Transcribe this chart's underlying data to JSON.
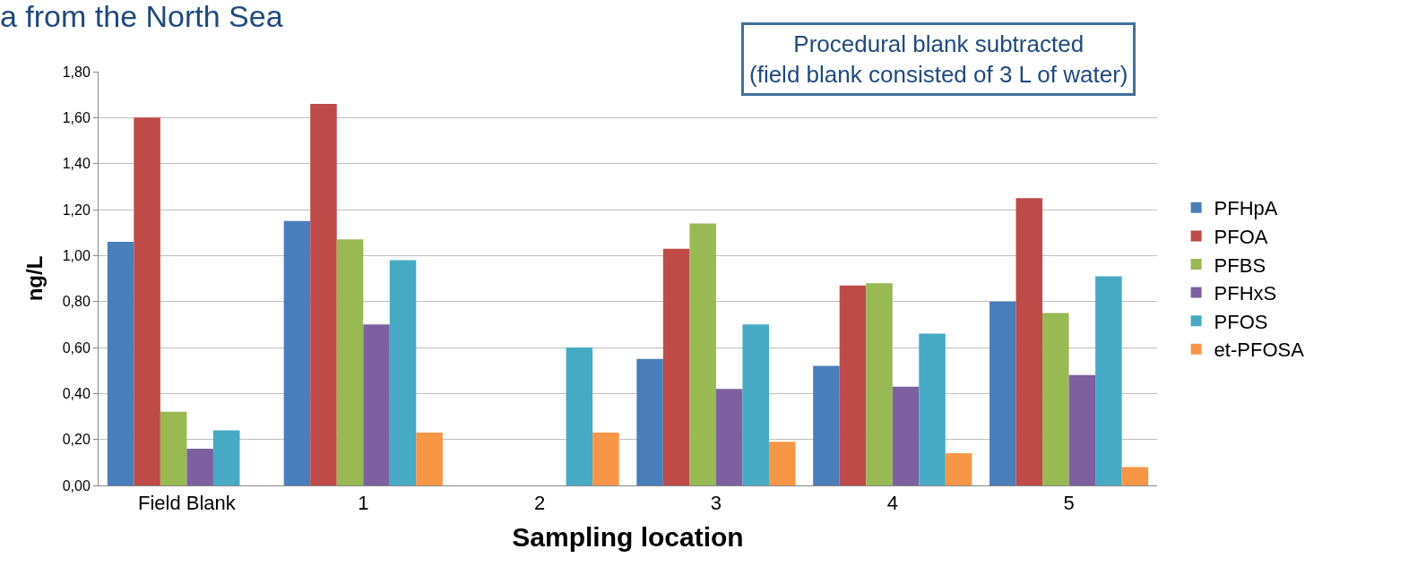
{
  "chart_data": {
    "type": "bar",
    "title": "a from the North Sea",
    "xlabel": "Sampling location",
    "ylabel": "ng/L",
    "annotations": [
      "Procedural blank subtracted\n(field blank consisted of 3 L of water)"
    ],
    "categories": [
      "Field Blank",
      "1",
      "2",
      "3",
      "4",
      "5"
    ],
    "series": [
      {
        "name": "PFHpA",
        "color": "#4a7ebb",
        "values": [
          1.06,
          1.15,
          null,
          0.55,
          0.52,
          0.8
        ]
      },
      {
        "name": "PFOA",
        "color": "#be4b48",
        "values": [
          1.6,
          1.66,
          null,
          1.03,
          0.87,
          1.25
        ]
      },
      {
        "name": "PFBS",
        "color": "#98b954",
        "values": [
          0.32,
          1.07,
          null,
          1.14,
          0.88,
          0.75
        ]
      },
      {
        "name": "PFHxS",
        "color": "#7d60a0",
        "values": [
          0.16,
          0.7,
          null,
          0.42,
          0.43,
          0.48
        ]
      },
      {
        "name": "PFOS",
        "color": "#46aac5",
        "values": [
          0.24,
          0.98,
          0.6,
          0.7,
          0.66,
          0.91
        ]
      },
      {
        "name": "et-PFOSA",
        "color": "#f79646",
        "values": [
          null,
          0.23,
          0.23,
          0.19,
          0.14,
          0.08
        ]
      }
    ],
    "ylim": [
      0,
      1.8
    ],
    "yticks": [
      {
        "value": 0,
        "label": "0,00"
      },
      {
        "value": 0.2,
        "label": "0,20"
      },
      {
        "value": 0.4,
        "label": "0,40"
      },
      {
        "value": 0.6,
        "label": "0,60"
      },
      {
        "value": 0.8,
        "label": "0,80"
      },
      {
        "value": 1.0,
        "label": "1,00"
      },
      {
        "value": 1.2,
        "label": "1,20"
      },
      {
        "value": 1.4,
        "label": "1,40"
      },
      {
        "value": 1.6,
        "label": "1,60"
      },
      {
        "value": 1.8,
        "label": "1,80"
      }
    ],
    "grid": "y",
    "legend": "right"
  }
}
